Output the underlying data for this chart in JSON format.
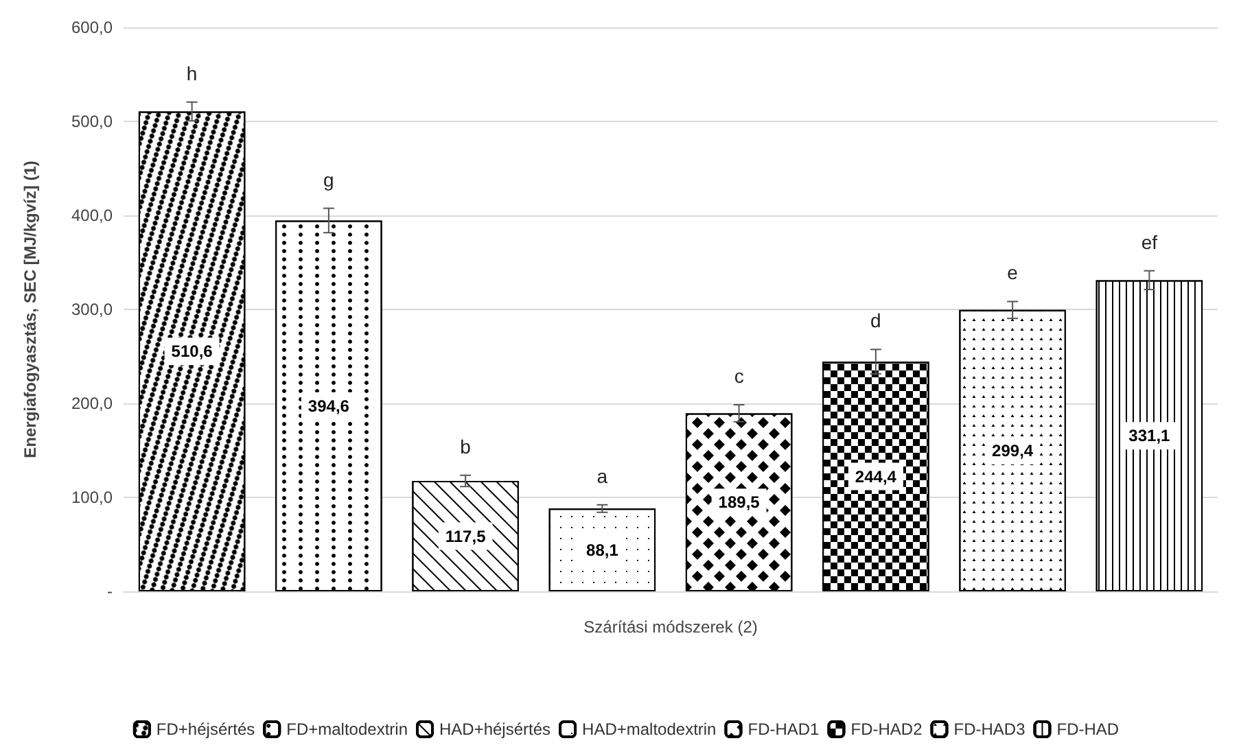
{
  "chart_data": {
    "type": "bar",
    "xlabel": "Szárítási módszerek (2)",
    "ylabel": "Energiafogyasztás, SEC [MJ/kgvíz] (1)",
    "categories": [
      null
    ],
    "series": [
      {
        "name": "FD+héjsértés",
        "color": "#000000",
        "values": [
          510.6
        ],
        "value_labels": [
          "510,6"
        ],
        "errors": [
          10
        ]
      },
      {
        "name": "FD+maltodextrin",
        "color": "#000000",
        "values": [
          394.6
        ],
        "value_labels": [
          "394,6"
        ],
        "errors": [
          13
        ]
      },
      {
        "name": "HAD+héjsértés",
        "color": "#000000",
        "values": [
          117.5
        ],
        "value_labels": [
          "117,5"
        ],
        "errors": [
          6
        ]
      },
      {
        "name": "HAD+maltodextrin",
        "color": "#000000",
        "values": [
          88.1
        ],
        "value_labels": [
          "88,1"
        ],
        "errors": [
          4
        ]
      },
      {
        "name": "FD-HAD1",
        "color": "#000000",
        "values": [
          189.5
        ],
        "value_labels": [
          "189,5"
        ],
        "errors": [
          9
        ]
      },
      {
        "name": "FD-HAD2",
        "color": "#000000",
        "values": [
          244.4
        ],
        "value_labels": [
          "244,4"
        ],
        "errors": [
          13
        ]
      },
      {
        "name": "FD-HAD3",
        "color": "#000000",
        "values": [
          299.4
        ],
        "value_labels": [
          "299,4"
        ],
        "errors": [
          9
        ]
      },
      {
        "name": "FD-HAD",
        "color": "#000000",
        "values": [
          331.1
        ],
        "value_labels": [
          "331,1"
        ],
        "errors": [
          10
        ]
      }
    ],
    "annotations": [
      "h",
      "g",
      "b",
      "a",
      "c",
      "d",
      "e",
      "ef"
    ],
    "ylim": [
      0,
      600
    ],
    "yticks": [
      {
        "value": 0,
        "label": "-"
      },
      {
        "value": 100,
        "label": "100,0"
      },
      {
        "value": 200,
        "label": "200,0"
      },
      {
        "value": 300,
        "label": "300,0"
      },
      {
        "value": 400,
        "label": "400,0"
      },
      {
        "value": 500,
        "label": "500,0"
      },
      {
        "value": 600,
        "label": "600,0"
      }
    ],
    "grid": "y",
    "legend": "bottom"
  }
}
